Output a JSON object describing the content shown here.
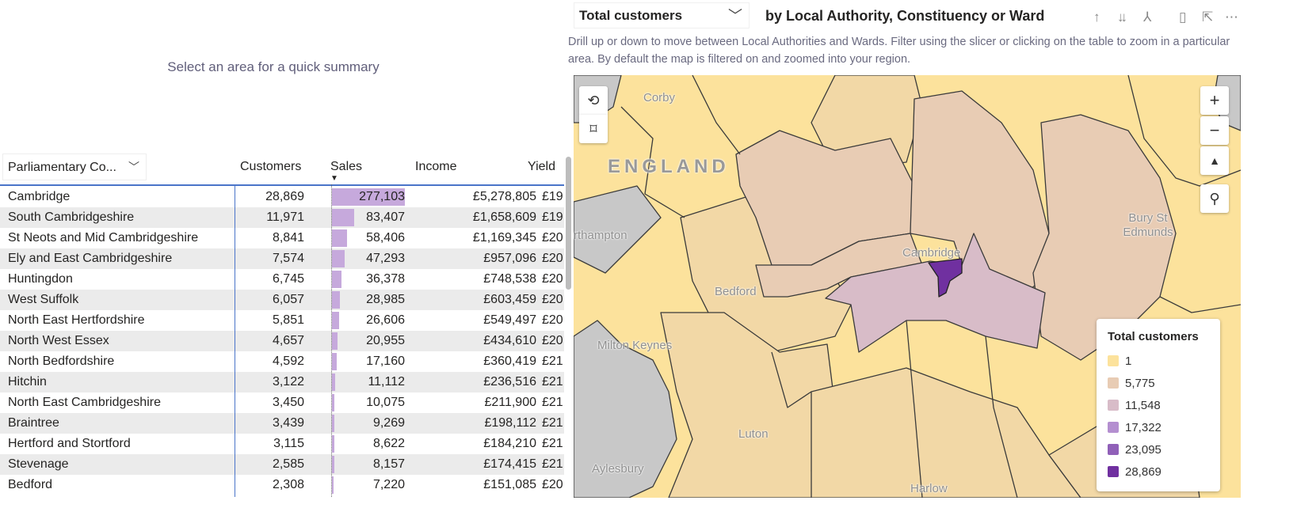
{
  "summary_text": "Select an area for a quick summary",
  "table": {
    "slicer_label": "Parliamentary Co...",
    "columns": [
      "Customers",
      "Sales",
      "Income",
      "Yield"
    ],
    "rows": [
      {
        "name": "Cambridge",
        "customers": "28,869",
        "sales": "277,103",
        "sales_value": 277103,
        "income": "£5,278,805",
        "yield": "£19"
      },
      {
        "name": "South Cambridgeshire",
        "customers": "11,971",
        "sales": "83,407",
        "sales_value": 83407,
        "income": "£1,658,609",
        "yield": "£19"
      },
      {
        "name": "St Neots and Mid Cambridgeshire",
        "customers": "8,841",
        "sales": "58,406",
        "sales_value": 58406,
        "income": "£1,169,345",
        "yield": "£20"
      },
      {
        "name": "Ely and East Cambridgeshire",
        "customers": "7,574",
        "sales": "47,293",
        "sales_value": 47293,
        "income": "£957,096",
        "yield": "£20"
      },
      {
        "name": "Huntingdon",
        "customers": "6,745",
        "sales": "36,378",
        "sales_value": 36378,
        "income": "£748,538",
        "yield": "£20"
      },
      {
        "name": "West Suffolk",
        "customers": "6,057",
        "sales": "28,985",
        "sales_value": 28985,
        "income": "£603,459",
        "yield": "£20"
      },
      {
        "name": "North East Hertfordshire",
        "customers": "5,851",
        "sales": "26,606",
        "sales_value": 26606,
        "income": "£549,497",
        "yield": "£20"
      },
      {
        "name": "North West Essex",
        "customers": "4,657",
        "sales": "20,955",
        "sales_value": 20955,
        "income": "£434,610",
        "yield": "£20"
      },
      {
        "name": "North Bedfordshire",
        "customers": "4,592",
        "sales": "17,160",
        "sales_value": 17160,
        "income": "£360,419",
        "yield": "£21"
      },
      {
        "name": "Hitchin",
        "customers": "3,122",
        "sales": "11,112",
        "sales_value": 11112,
        "income": "£236,516",
        "yield": "£21"
      },
      {
        "name": "North East Cambridgeshire",
        "customers": "3,450",
        "sales": "10,075",
        "sales_value": 10075,
        "income": "£211,900",
        "yield": "£21"
      },
      {
        "name": "Braintree",
        "customers": "3,439",
        "sales": "9,269",
        "sales_value": 9269,
        "income": "£198,112",
        "yield": "£21"
      },
      {
        "name": "Hertford and Stortford",
        "customers": "3,115",
        "sales": "8,622",
        "sales_value": 8622,
        "income": "£184,210",
        "yield": "£21"
      },
      {
        "name": "Stevenage",
        "customers": "2,585",
        "sales": "8,157",
        "sales_value": 8157,
        "income": "£174,415",
        "yield": "£21"
      },
      {
        "name": "Bedford",
        "customers": "2,308",
        "sales": "7,220",
        "sales_value": 7220,
        "income": "£151,085",
        "yield": "£20"
      }
    ]
  },
  "map_panel": {
    "measure": "Total customers",
    "title": "by Local Authority, Constituency or Ward",
    "description": "Drill up or down to move between Local Authorities and Wards. Filter using the slicer or clicking on the table to zoom in a particular area. By default the map is filtered on and zoomed into your region.",
    "places": [
      "Corby",
      "ENGLAND",
      "rthampton",
      "Bedford",
      "Cambridge",
      "Bury St Edmunds",
      "Milton Keynes",
      "Luton",
      "Aylesbury",
      "Harlow"
    ],
    "legend": {
      "title": "Total customers",
      "items": [
        {
          "label": "1",
          "color": "#fce29c"
        },
        {
          "label": "5,775",
          "color": "#e8ccb4"
        },
        {
          "label": "11,548",
          "color": "#d8bcc8"
        },
        {
          "label": "17,322",
          "color": "#b48fd0"
        },
        {
          "label": "23,095",
          "color": "#9060b8"
        },
        {
          "label": "28,869",
          "color": "#7030a0"
        }
      ]
    }
  }
}
